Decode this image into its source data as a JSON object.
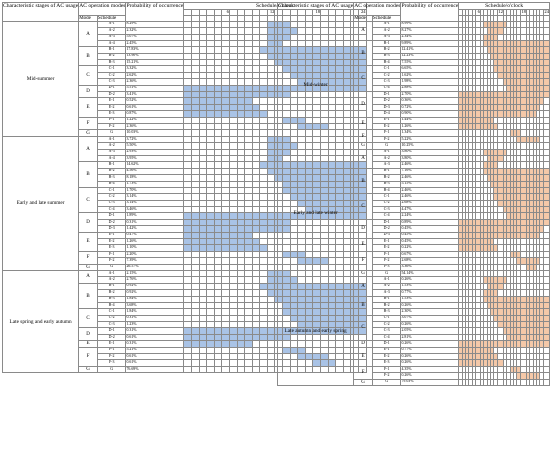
{
  "headers": {
    "stage": "Characteristic stages of AC usage",
    "modes": "AC operation modes",
    "probability": "Probability of occurrence",
    "schedule": "Schedule/o'clock",
    "mode_col": "Mode",
    "schedule_col": "Schedule"
  },
  "hour_ticks": [
    "6",
    "12",
    "18",
    "24"
  ],
  "colors": {
    "summer_fill": "#a9c3e6",
    "winter_fill": "#f4c8a8",
    "grid": "#8a8a8a"
  },
  "left_panel": {
    "stages": [
      {
        "name": "Mid-summer",
        "groups": [
          {
            "mode": "A",
            "rows": [
              {
                "s": "A-1",
                "p": "8.29%"
              },
              {
                "s": "A-2",
                "p": "2.32%"
              },
              {
                "s": "A-3",
                "p": "5.07%"
              },
              {
                "s": "A-4",
                "p": "2.45%"
              }
            ]
          },
          {
            "mode": "B",
            "rows": [
              {
                "s": "B-1",
                "p": "17.83%"
              },
              {
                "s": "B-2",
                "p": "13.90%"
              },
              {
                "s": "B-3",
                "p": "15.21%"
              }
            ]
          },
          {
            "mode": "C",
            "rows": [
              {
                "s": "C-1",
                "p": "3.32%"
              },
              {
                "s": "C-2",
                "p": "2.62%"
              },
              {
                "s": "C-3",
                "p": "2.36%"
              }
            ]
          },
          {
            "mode": "D",
            "rows": [
              {
                "s": "D-1",
                "p": "5.51%"
              },
              {
                "s": "D-2",
                "p": "3.41%"
              }
            ]
          },
          {
            "mode": "E",
            "rows": [
              {
                "s": "E-1",
                "p": "0.52%"
              },
              {
                "s": "E-2",
                "p": "0.61%"
              },
              {
                "s": "E-3",
                "p": "0.87%"
              }
            ]
          },
          {
            "mode": "F",
            "rows": [
              {
                "s": "F-1",
                "p": "1.22%"
              },
              {
                "s": "F-2",
                "p": "2.36%"
              }
            ]
          },
          {
            "mode": "G",
            "rows": [
              {
                "s": "G",
                "p": "10.03%"
              }
            ]
          }
        ]
      },
      {
        "name": "Early and late summer",
        "groups": [
          {
            "mode": "A",
            "rows": [
              {
                "s": "A-1",
                "p": "3.72%"
              },
              {
                "s": "A-2",
                "p": "5.50%"
              },
              {
                "s": "A-3",
                "p": "2.93%"
              },
              {
                "s": "A-4",
                "p": "3.95%"
              }
            ]
          },
          {
            "mode": "B",
            "rows": [
              {
                "s": "B-1",
                "p": "14.62%"
              },
              {
                "s": "B-2",
                "p": "4.56%"
              },
              {
                "s": "B-3",
                "p": "8.18%"
              },
              {
                "s": "B-4",
                "p": "1.73%"
              }
            ]
          },
          {
            "mode": "C",
            "rows": [
              {
                "s": "C-1",
                "p": "1.70%"
              },
              {
                "s": "C-2",
                "p": "3.14%"
              },
              {
                "s": "C-3",
                "p": "3.14%"
              },
              {
                "s": "C-4",
                "p": "3.46%"
              }
            ]
          },
          {
            "mode": "D",
            "rows": [
              {
                "s": "D-1",
                "p": "1.89%"
              },
              {
                "s": "D-2",
                "p": "0.31%"
              },
              {
                "s": "D-3",
                "p": "1.42%"
              }
            ]
          },
          {
            "mode": "E",
            "rows": [
              {
                "s": "E-1",
                "p": "0.47%"
              },
              {
                "s": "E-2",
                "p": "1.26%"
              },
              {
                "s": "E-3",
                "p": "1.10%"
              }
            ]
          },
          {
            "mode": "F",
            "rows": [
              {
                "s": "F-1",
                "p": "2.20%"
              },
              {
                "s": "F-2",
                "p": "7.39%"
              }
            ]
          },
          {
            "mode": "G",
            "rows": [
              {
                "s": "G",
                "p": "26.57%"
              }
            ]
          }
        ]
      },
      {
        "name": "Late spring and early autumn",
        "groups": [
          {
            "mode": "A",
            "rows": [
              {
                "s": "A-1",
                "p": "2.15%"
              },
              {
                "s": "A-2",
                "p": "2.76%"
              }
            ]
          },
          {
            "mode": "B",
            "rows": [
              {
                "s": "B-1",
                "p": "0.92%"
              },
              {
                "s": "B-2",
                "p": "0.92%"
              },
              {
                "s": "B-3",
                "p": "1.84%"
              },
              {
                "s": "B-4",
                "p": "3.68%"
              }
            ]
          },
          {
            "mode": "C",
            "rows": [
              {
                "s": "C-1",
                "p": "1.84%"
              },
              {
                "s": "C-2",
                "p": "0.31%"
              },
              {
                "s": "C-3",
                "p": "1.23%"
              }
            ]
          },
          {
            "mode": "D",
            "rows": [
              {
                "s": "D-1",
                "p": "0.31%"
              },
              {
                "s": "D-2",
                "p": "0.61%"
              }
            ]
          },
          {
            "mode": "E",
            "rows": [
              {
                "s": "E-1",
                "p": "0.31%"
              }
            ]
          },
          {
            "mode": "F",
            "rows": [
              {
                "s": "F-1",
                "p": "5.21%"
              },
              {
                "s": "F-2",
                "p": "0.61%"
              },
              {
                "s": "F-3",
                "p": "0.61%"
              }
            ]
          },
          {
            "mode": "G",
            "rows": [
              {
                "s": "G",
                "p": "76.69%"
              }
            ]
          }
        ]
      }
    ]
  },
  "right_panel": {
    "stages": [
      {
        "name": "Mid-winter",
        "groups": [
          {
            "mode": "A",
            "rows": [
              {
                "s": "A-1",
                "p": "8.99%"
              },
              {
                "s": "A-2",
                "p": "8.27%"
              },
              {
                "s": "A-3",
                "p": "2.34%"
              }
            ]
          },
          {
            "mode": "B",
            "rows": [
              {
                "s": "B-1",
                "p": "9.89%"
              },
              {
                "s": "B-2",
                "p": "12.41%"
              },
              {
                "s": "B-3",
                "p": "12.23%"
              },
              {
                "s": "B-4",
                "p": "7.55%"
              }
            ]
          },
          {
            "mode": "C",
            "rows": [
              {
                "s": "C-1",
                "p": "6.65%"
              },
              {
                "s": "C-2",
                "p": "1.62%"
              },
              {
                "s": "C-3",
                "p": "1.98%"
              },
              {
                "s": "C-4",
                "p": "2.88%"
              }
            ]
          },
          {
            "mode": "D",
            "rows": [
              {
                "s": "D-1",
                "p": "2.70%"
              },
              {
                "s": "D-2",
                "p": "0.36%"
              },
              {
                "s": "D-3",
                "p": "0.72%"
              },
              {
                "s": "D-4",
                "p": "0.90%"
              }
            ]
          },
          {
            "mode": "E",
            "rows": [
              {
                "s": "E-1",
                "p": "1.44%"
              },
              {
                "s": "E-2",
                "p": "1.26%"
              }
            ]
          },
          {
            "mode": "F",
            "rows": [
              {
                "s": "F-1",
                "p": "1.34%"
              },
              {
                "s": "F-2",
                "p": "5.22%"
              }
            ]
          },
          {
            "mode": "G",
            "rows": [
              {
                "s": "G",
                "p": "10.25%"
              }
            ]
          }
        ]
      },
      {
        "name": "Early and late winter",
        "groups": [
          {
            "mode": "A",
            "rows": [
              {
                "s": "A-1",
                "p": "3.80%"
              },
              {
                "s": "A-2",
                "p": "3.80%"
              },
              {
                "s": "A-3",
                "p": "2.46%"
              }
            ]
          },
          {
            "mode": "B",
            "rows": [
              {
                "s": "B-1",
                "p": "7.16%"
              },
              {
                "s": "B-2",
                "p": "2.46%"
              },
              {
                "s": "B-3",
                "p": "5.15%"
              },
              {
                "s": "B-4",
                "p": "2.46%"
              }
            ]
          },
          {
            "mode": "C",
            "rows": [
              {
                "s": "C-1",
                "p": "2.46%"
              },
              {
                "s": "C-2",
                "p": "2.68%"
              },
              {
                "s": "C-3",
                "p": "4.47%"
              },
              {
                "s": "C-4",
                "p": "2.24%"
              }
            ]
          },
          {
            "mode": "D",
            "rows": [
              {
                "s": "D-1",
                "p": "0.89%"
              },
              {
                "s": "D-2",
                "p": "0.45%"
              },
              {
                "s": "D-3",
                "p": "0.45%"
              }
            ]
          },
          {
            "mode": "E",
            "rows": [
              {
                "s": "E-1",
                "p": "0.45%"
              },
              {
                "s": "E-2",
                "p": "0.22%"
              }
            ]
          },
          {
            "mode": "F",
            "rows": [
              {
                "s": "F-1",
                "p": "0.67%"
              },
              {
                "s": "F-2",
                "p": "2.68%"
              },
              {
                "s": "F-3",
                "p": "3.36%"
              }
            ]
          },
          {
            "mode": "G",
            "rows": [
              {
                "s": "G",
                "p": "54.14%"
              }
            ]
          }
        ]
      },
      {
        "name": "Late autumn and early spring",
        "groups": [
          {
            "mode": "A",
            "rows": [
              {
                "s": "A-1",
                "p": "0.26%"
              },
              {
                "s": "A-2",
                "p": "1.53%"
              },
              {
                "s": "A-3",
                "p": "0.77%"
              }
            ]
          },
          {
            "mode": "B",
            "rows": [
              {
                "s": "B-1",
                "p": "1.53%"
              },
              {
                "s": "B-2",
                "p": "0.26%"
              },
              {
                "s": "B-3",
                "p": "2.30%"
              }
            ]
          },
          {
            "mode": "C",
            "rows": [
              {
                "s": "C-1",
                "p": "3.07%"
              },
              {
                "s": "C-2",
                "p": "0.26%"
              },
              {
                "s": "C-3",
                "p": "2.05%"
              },
              {
                "s": "C-4",
                "p": "2.81%"
              }
            ]
          },
          {
            "mode": "D",
            "rows": [
              {
                "s": "D-1",
                "p": "0.26%"
              }
            ]
          },
          {
            "mode": "E",
            "rows": [
              {
                "s": "E-1",
                "p": "0.77%"
              },
              {
                "s": "E-2",
                "p": "0.26%"
              },
              {
                "s": "E-3",
                "p": "0.26%"
              }
            ]
          },
          {
            "mode": "F",
            "rows": [
              {
                "s": "F-1",
                "p": "4.35%"
              },
              {
                "s": "F-2",
                "p": "0.26%"
              }
            ]
          },
          {
            "mode": "G",
            "rows": [
              {
                "s": "G",
                "p": "79.03%"
              }
            ]
          }
        ]
      }
    ]
  }
}
